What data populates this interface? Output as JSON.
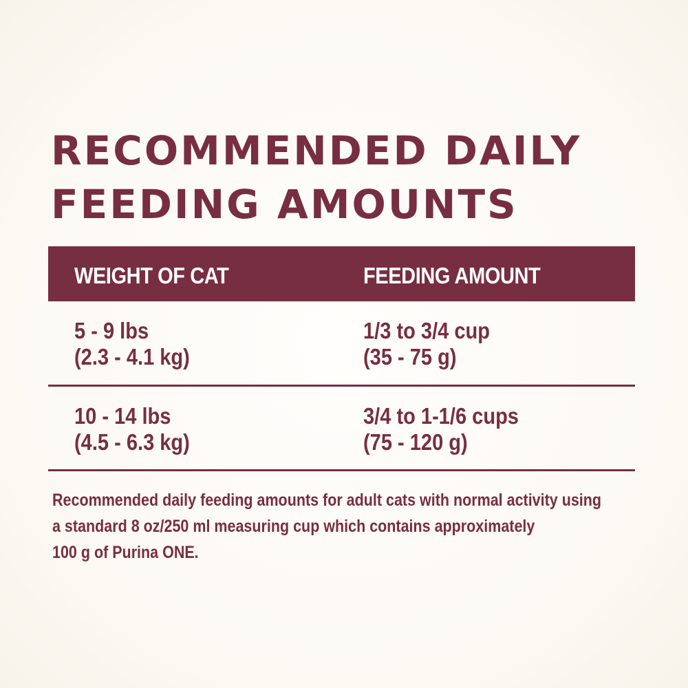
{
  "title_line1": "RECOMMENDED DAILY",
  "title_line2": "FEEDING AMOUNTS",
  "table": {
    "headers": [
      "WEIGHT OF CAT",
      "FEEDING AMOUNT"
    ],
    "rows": [
      {
        "weight": [
          "5 - 9 lbs",
          "(2.3 - 4.1 kg)"
        ],
        "amount": [
          "1/3 to 3/4 cup",
          "(35 - 75 g)"
        ]
      },
      {
        "weight": [
          "10 - 14 lbs",
          "(4.5 - 6.3 kg)"
        ],
        "amount": [
          "3/4 to 1-1/6 cups",
          "(75 - 120 g)"
        ]
      }
    ]
  },
  "note": [
    "Recommended daily feeding amounts for adult cats with normal activity using",
    "a standard 8 oz/250 ml measuring cup which contains approximately",
    "100 g of Purina ONE."
  ],
  "colors": {
    "accent": "#772e40"
  }
}
